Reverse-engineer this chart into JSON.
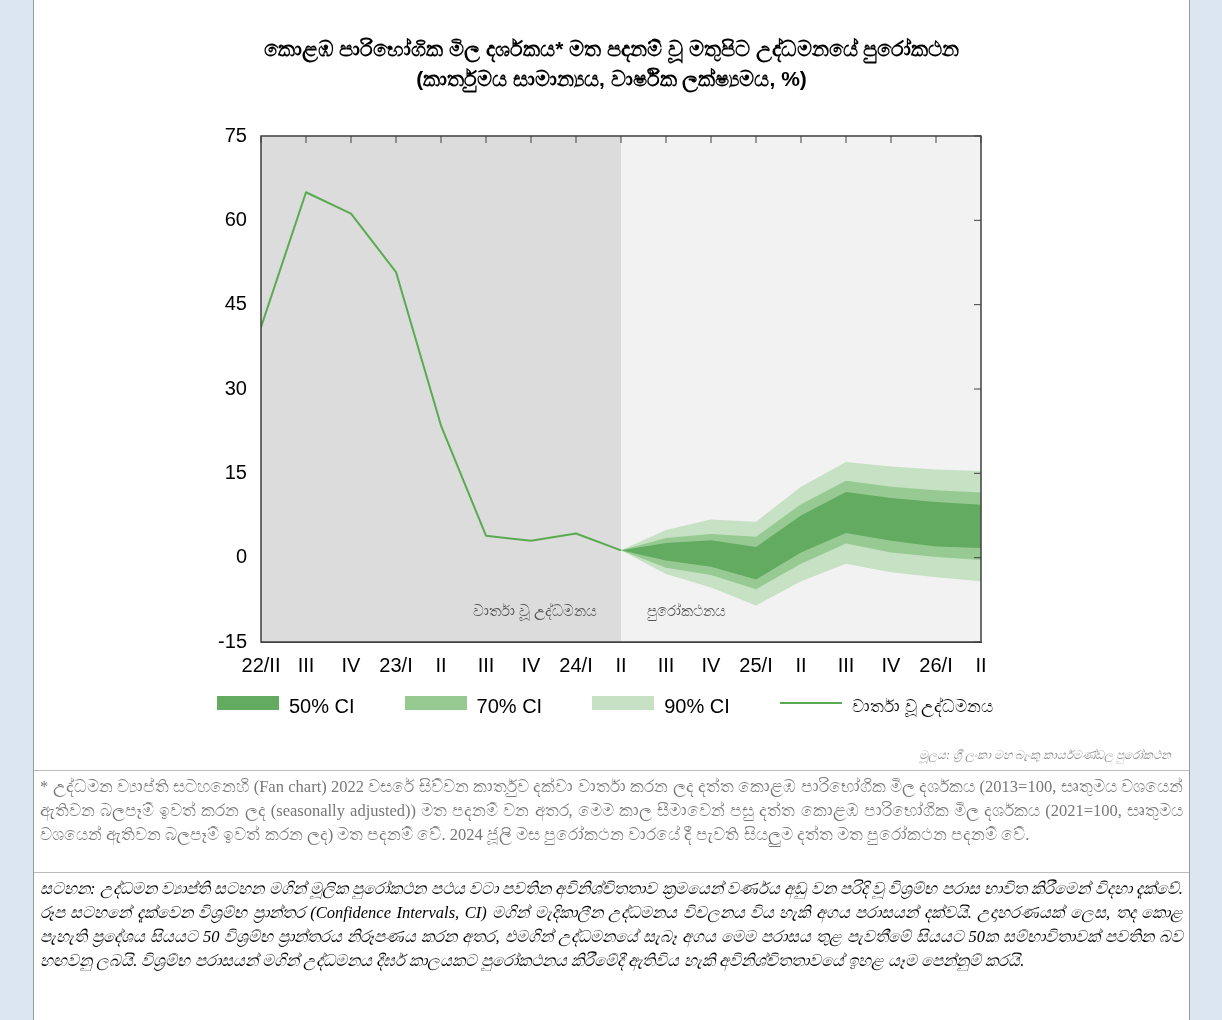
{
  "chart_data": {
    "type": "line",
    "title": "කොළඹ පාරිභෝගික මිල දර්ශකය* මත පදනම් වූ මතුපිට උද්ධමනයේ පුරෝකථන",
    "subtitle": "(කාර්තුමය සාමාන්‍යය, වාර්ෂික ලක්ෂ්‍යමය, %)",
    "xlim": [
      "2022-04",
      "2026-04"
    ],
    "xticks": [
      {
        "value": "2022-04",
        "label": "22/II"
      },
      {
        "value": "2022-07",
        "label": "III"
      },
      {
        "value": "2022-10",
        "label": "IV"
      },
      {
        "value": "2023-01",
        "label": "23/I"
      },
      {
        "value": "2023-04",
        "label": "II"
      },
      {
        "value": "2023-07",
        "label": "III"
      },
      {
        "value": "2023-10",
        "label": "IV"
      },
      {
        "value": "2024-01",
        "label": "24/I"
      },
      {
        "value": "2024-04",
        "label": "II"
      },
      {
        "value": "2024-07",
        "label": "III"
      },
      {
        "value": "2024-10",
        "label": "IV"
      },
      {
        "value": "2025-01",
        "label": "25/I"
      },
      {
        "value": "2025-04",
        "label": "II"
      },
      {
        "value": "2025-07",
        "label": "III"
      },
      {
        "value": "2025-10",
        "label": "IV"
      },
      {
        "value": "2026-01",
        "label": "26/I"
      },
      {
        "value": "2026-04",
        "label": "II"
      }
    ],
    "series": [
      {
        "name": "50% CI",
        "type": "area",
        "color": "#62ab60",
        "x": [
          "2024-04",
          "2024-07",
          "2024-10",
          "2025-01",
          "2025-04",
          "2025-07",
          "2025-10",
          "2026-01",
          "2026-04"
        ],
        "values": [
          null,
          null,
          null,
          null,
          null,
          null,
          null,
          null,
          null
        ],
        "upper": [
          1.3,
          2.6,
          3.1,
          1.9,
          7.5,
          11.7,
          10.6,
          9.9,
          9.4
        ],
        "lower": [
          1.3,
          -0.5,
          -1.6,
          -3.9,
          0.9,
          4.4,
          3.0,
          2.0,
          1.7
        ]
      },
      {
        "name": "70% CI",
        "type": "area",
        "color": "#97ca93",
        "x": [
          "2024-04",
          "2024-07",
          "2024-10",
          "2025-01",
          "2025-04",
          "2025-07",
          "2025-10",
          "2026-01",
          "2026-04"
        ],
        "values": [
          null,
          null,
          null,
          null,
          null,
          null,
          null,
          null,
          null
        ],
        "upper": [
          1.3,
          3.5,
          4.2,
          3.7,
          9.5,
          13.7,
          12.6,
          12.0,
          11.6
        ],
        "lower": [
          1.3,
          -1.8,
          -3.1,
          -5.6,
          -1.1,
          2.5,
          0.9,
          0.1,
          -0.4
        ]
      },
      {
        "name": "90% CI",
        "type": "area",
        "color": "#c6e1c3",
        "x": [
          "2024-04",
          "2024-07",
          "2024-10",
          "2025-01",
          "2025-04",
          "2025-07",
          "2025-10",
          "2026-01",
          "2026-04"
        ],
        "values": [
          null,
          null,
          null,
          null,
          null,
          null,
          null,
          null,
          null
        ],
        "upper": [
          1.3,
          4.9,
          6.8,
          6.4,
          12.6,
          17.0,
          16.2,
          15.7,
          15.4
        ],
        "lower": [
          1.3,
          -2.9,
          -5.3,
          -8.5,
          -4.2,
          -1.1,
          -2.6,
          -3.5,
          -4.2
        ]
      },
      {
        "name": "වාර්තා වූ උද්ධමනය",
        "type": "line",
        "color": "#5aaa52",
        "x": [
          "2022-04",
          "2022-07",
          "2022-10",
          "2023-01",
          "2023-04",
          "2023-07",
          "2023-10",
          "2024-01",
          "2024-04"
        ],
        "values": [
          41,
          65,
          61.2,
          50.8,
          23.5,
          3.9,
          3.0,
          4.3,
          1.3
        ]
      }
    ],
    "ylim": [
      -15,
      75
    ],
    "yticks": [
      -15,
      0,
      15,
      30,
      45,
      60,
      75
    ],
    "grid": false,
    "legend": "bottom",
    "marker": "none",
    "bands": [
      {
        "axis": "x",
        "from": "2022-04",
        "to": "2024-04",
        "label": "වාර්තා වූ උද්ධමනය",
        "color": "#dcdcdc"
      },
      {
        "axis": "x",
        "from": "2024-04",
        "to": "2026-04",
        "label": "පුරෝකථනය",
        "color": "#f2f2f2"
      }
    ],
    "annotations": [
      "මූලය: ශ්‍රී ලංකා මහ බැංකු කාර්යමණ්ඩල පුරෝකථන",
      "* උද්ධමන ව්‍යාප්ති සටහනෙහි (Fan chart) 2022 වසරේ සිව්වන කාර්තුව දක්වා වාර්තා කරන ලද දත්ත කොළඹ පාරිභෝගික මිල දර්ශකය (2013=100, සෘතුමය වශයෙන් ඇතිවන බලපෑම් ඉවත් කරන ලද (seasonally adjusted)) මත පදනම් වන අතර, මෙම කාල සීමාවෙන් පසු දත්ත කොළඹ පාරිභෝගික මිල දර්ශකය (2021=100, සෘතුමය වශයෙන් ඇතිවන බලපෑම් ඉවත් කරන ලද) මත පදනම් වේ. 2024 ජූලි මස පුරෝකථන වාරයේ දී පැවති සියලුම දත්ත මත පුරෝකථන පදනම් වේ.",
      "සටහන: උද්ධමන ව්‍යාප්ති සටහන මගින් මූලික පුරෝකථන පථය වටා පවතින අවිනිශ්චිතතාව ක්‍රමයෙන් වර්ණය අඩු වන පරිදි වූ විශ්‍රම්භ පරාස භාවිත කිරීමෙන් විදහා දැක්වේ. රූප සටහනේ දැක්වෙන විශ්‍රම්භ ප්‍රාන්තර (Confidence Intervals, CI) මගින් මැදිකාලීන උද්ධමනය විචලනය විය හැකි අගය පරාසයන් දක්වයි. උදාහරණයක් ලෙස, තද කොළ පැහැති ප්‍රදේශය සියයට 50 විශ්‍රම්භ ප්‍රාන්තරය නිරූපණය කරන අතර, එමගින් උද්ධමනයේ සැබෑ අගය මෙම පරාසය තුළ පැවතීමේ සියයට 50ක සම්භාවිතාවක් පවතින බව හඟවනු ලබයි. විශ්‍රම්භ පරාසයන් මගින් උද්ධමනය දීර්ඝ කාලයකට පුරෝකථනය කිරීමේදී ඇතිවිය හැකි අවිනිශ්චිතතාවයේ ඉහළ යෑම පෙන්නුම් කරයි."
    ]
  }
}
